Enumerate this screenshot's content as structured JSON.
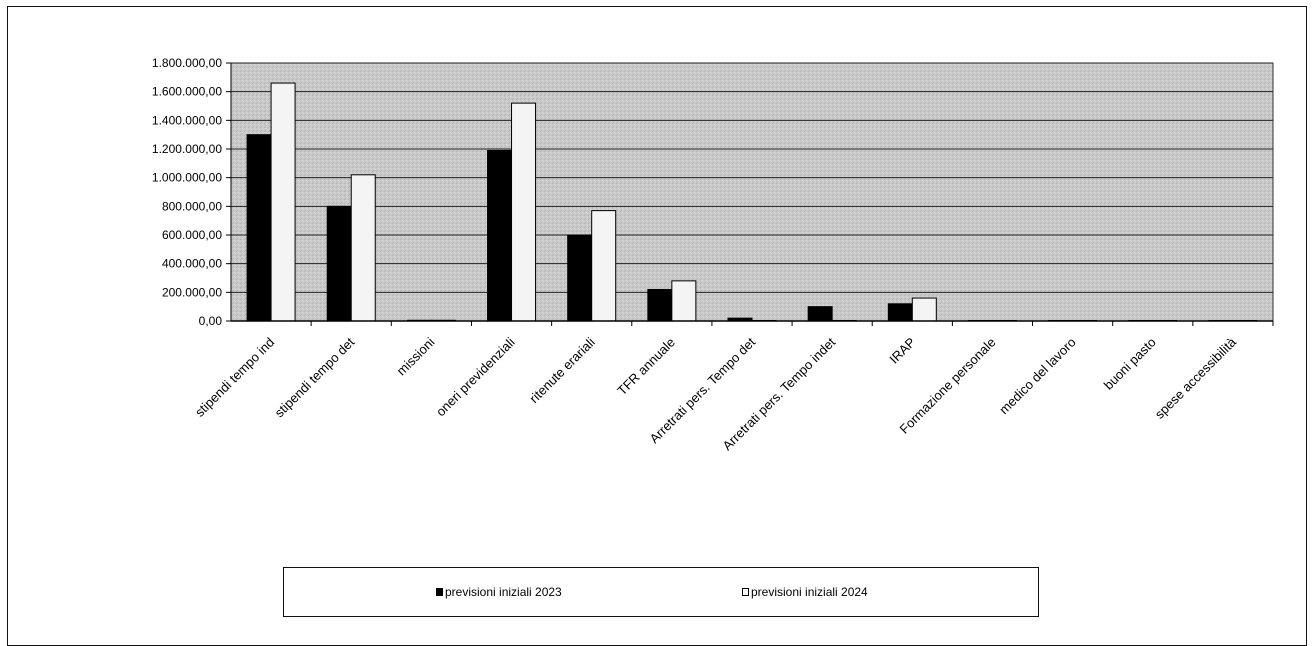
{
  "chart_data": {
    "type": "bar",
    "title": "",
    "xlabel": "",
    "ylabel": "",
    "ylim": [
      0,
      1800000
    ],
    "y_tick_step": 200000,
    "y_tick_labels": [
      "0,00",
      "200.000,00",
      "400.000,00",
      "600.000,00",
      "800.000,00",
      "1.000.000,00",
      "1.200.000,00",
      "1.400.000,00",
      "1.600.000,00",
      "1.800.000,00"
    ],
    "grid": true,
    "legend_position": "bottom",
    "categories": [
      "stipendi tempo ind",
      "stipendi tempo det",
      "missioni",
      "oneri previdenziali",
      "ritenute erariali",
      "TFR annuale",
      "Arretrati pers. Tempo det",
      "Arretrati pers. Tempo indet",
      "IRAP",
      "Formazione personale",
      "medico del lavoro",
      "buoni pasto",
      "spese accessibilità"
    ],
    "series": [
      {
        "name": "previsioni iniziali  2023",
        "color": "#000000",
        "values": [
          1300000,
          800000,
          5000,
          1190000,
          600000,
          220000,
          20000,
          100000,
          120000,
          3000,
          3000,
          3000,
          0
        ]
      },
      {
        "name": "previsioni iniziali 2024",
        "color": "#f4f4f4",
        "values": [
          1660000,
          1020000,
          5000,
          1520000,
          770000,
          280000,
          0,
          0,
          160000,
          3000,
          3000,
          3000,
          3000
        ]
      }
    ]
  }
}
